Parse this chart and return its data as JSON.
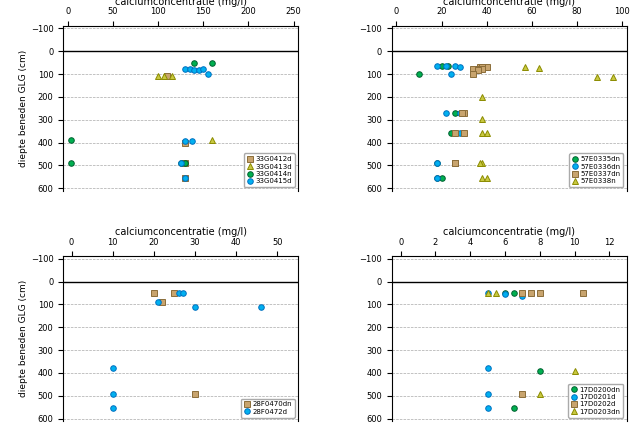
{
  "xlabel": "calciumconcentratie (mg/l)",
  "ylabel": "diepte beneden GLG (cm)",
  "subplots": [
    {
      "xlim": [
        -5,
        255
      ],
      "xticks": [
        0,
        50,
        100,
        150,
        200,
        250
      ],
      "ylim": [
        610,
        -110
      ],
      "yticks": [
        -100,
        0,
        100,
        200,
        300,
        400,
        500,
        600
      ],
      "series": [
        {
          "label": "33G0412d",
          "color": "#C8A46E",
          "marker": "s",
          "edgecolor": "#8B6D3A",
          "points": [
            [
              110,
              110
            ],
            [
              130,
              400
            ],
            [
              130,
              490
            ],
            [
              130,
              555
            ]
          ]
        },
        {
          "label": "33G0413d",
          "color": "#C8C840",
          "marker": "^",
          "edgecolor": "#8B8B00",
          "points": [
            [
              100,
              110
            ],
            [
              107,
              110
            ],
            [
              115,
              110
            ],
            [
              160,
              390
            ],
            [
              220,
              500
            ],
            [
              235,
              555
            ]
          ]
        },
        {
          "label": "33G0414n",
          "color": "#00B050",
          "marker": "o",
          "edgecolor": "#006030",
          "points": [
            [
              3,
              390
            ],
            [
              3,
              490
            ],
            [
              140,
              50
            ],
            [
              160,
              50
            ],
            [
              125,
              490
            ],
            [
              130,
              490
            ]
          ]
        },
        {
          "label": "33G0415d",
          "color": "#00B0F0",
          "marker": "o",
          "edgecolor": "#0070C0",
          "points": [
            [
              130,
              78
            ],
            [
              135,
              80
            ],
            [
              140,
              82
            ],
            [
              145,
              83
            ],
            [
              150,
              80
            ],
            [
              155,
              100
            ],
            [
              130,
              395
            ],
            [
              138,
              395
            ],
            [
              125,
              490
            ],
            [
              130,
              555
            ]
          ]
        }
      ]
    },
    {
      "xlim": [
        -2,
        102
      ],
      "xticks": [
        0,
        20,
        40,
        60,
        80,
        100
      ],
      "ylim": [
        610,
        -110
      ],
      "yticks": [
        -100,
        0,
        100,
        200,
        300,
        400,
        500,
        600
      ],
      "series": [
        {
          "label": "57E0335dn",
          "color": "#00B050",
          "marker": "o",
          "edgecolor": "#006030",
          "points": [
            [
              10,
              98
            ],
            [
              20,
              65
            ],
            [
              23,
              65
            ],
            [
              26,
              270
            ],
            [
              24,
              360
            ],
            [
              18,
              490
            ],
            [
              20,
              555
            ],
            [
              18,
              555
            ]
          ]
        },
        {
          "label": "57E0336dn",
          "color": "#00B0F0",
          "marker": "o",
          "edgecolor": "#0070C0",
          "points": [
            [
              18,
              65
            ],
            [
              22,
              65
            ],
            [
              26,
              65
            ],
            [
              28,
              68
            ],
            [
              24,
              98
            ],
            [
              22,
              270
            ],
            [
              28,
              270
            ],
            [
              26,
              360
            ],
            [
              28,
              360
            ],
            [
              18,
              490
            ],
            [
              18,
              555
            ]
          ]
        },
        {
          "label": "57E0337dn",
          "color": "#C8A46E",
          "marker": "s",
          "edgecolor": "#8B6D3A",
          "points": [
            [
              37,
              68
            ],
            [
              40,
              68
            ],
            [
              38,
              68
            ],
            [
              34,
              76
            ],
            [
              36,
              76
            ],
            [
              38,
              76
            ],
            [
              36,
              83
            ],
            [
              34,
              98
            ],
            [
              30,
              270
            ],
            [
              29,
              270
            ],
            [
              26,
              360
            ],
            [
              30,
              360
            ],
            [
              26,
              490
            ],
            [
              26,
              490
            ]
          ]
        },
        {
          "label": "57E0338n",
          "color": "#C8C840",
          "marker": "^",
          "edgecolor": "#8B8B00",
          "points": [
            [
              57,
              70
            ],
            [
              63,
              74
            ],
            [
              89,
              112
            ],
            [
              96,
              115
            ],
            [
              38,
              200
            ],
            [
              38,
              295
            ],
            [
              38,
              360
            ],
            [
              40,
              360
            ],
            [
              38,
              490
            ],
            [
              37,
              490
            ],
            [
              38,
              555
            ],
            [
              40,
              555
            ]
          ]
        }
      ]
    },
    {
      "xlim": [
        -2,
        55
      ],
      "xticks": [
        0,
        10,
        20,
        30,
        40,
        50
      ],
      "ylim": [
        610,
        -110
      ],
      "yticks": [
        -100,
        0,
        100,
        200,
        300,
        400,
        500,
        600
      ],
      "series": [
        {
          "label": "28F0470dn",
          "color": "#C8A46E",
          "marker": "s",
          "edgecolor": "#8B6D3A",
          "points": [
            [
              20,
              50
            ],
            [
              25,
              50
            ],
            [
              22,
              88
            ],
            [
              30,
              490
            ]
          ]
        },
        {
          "label": "28F0472d",
          "color": "#00B0F0",
          "marker": "o",
          "edgecolor": "#0070C0",
          "points": [
            [
              26,
              50
            ],
            [
              27,
              50
            ],
            [
              21,
              88
            ],
            [
              30,
              112
            ],
            [
              46,
              112
            ],
            [
              10,
              380
            ],
            [
              10,
              490
            ],
            [
              10,
              555
            ]
          ]
        }
      ]
    },
    {
      "xlim": [
        -0.5,
        13
      ],
      "xticks": [
        0,
        2,
        4,
        6,
        8,
        10,
        12
      ],
      "ylim": [
        610,
        -110
      ],
      "yticks": [
        -100,
        0,
        100,
        200,
        300,
        400,
        500,
        600
      ],
      "series": [
        {
          "label": "17D0200dn",
          "color": "#00B050",
          "marker": "o",
          "edgecolor": "#006030",
          "points": [
            [
              6,
              50
            ],
            [
              6.5,
              50
            ],
            [
              7,
              50
            ],
            [
              8,
              390
            ],
            [
              6.5,
              555
            ]
          ]
        },
        {
          "label": "17D0201d",
          "color": "#00B0F0",
          "marker": "o",
          "edgecolor": "#0070C0",
          "points": [
            [
              5,
              50
            ],
            [
              6,
              55
            ],
            [
              7,
              62
            ],
            [
              5,
              380
            ],
            [
              5,
              490
            ],
            [
              5,
              555
            ]
          ]
        },
        {
          "label": "17D0202d",
          "color": "#C8A46E",
          "marker": "s",
          "edgecolor": "#8B6D3A",
          "points": [
            [
              7,
              50
            ],
            [
              7.5,
              50
            ],
            [
              8,
              50
            ],
            [
              10.5,
              50
            ],
            [
              7,
              490
            ],
            [
              10.5,
              555
            ]
          ]
        },
        {
          "label": "17D0203dn",
          "color": "#C8C840",
          "marker": "^",
          "edgecolor": "#8B8B00",
          "points": [
            [
              5,
              50
            ],
            [
              5.5,
              50
            ],
            [
              10,
              390
            ],
            [
              8,
              490
            ],
            [
              10,
              555
            ]
          ]
        }
      ]
    }
  ]
}
